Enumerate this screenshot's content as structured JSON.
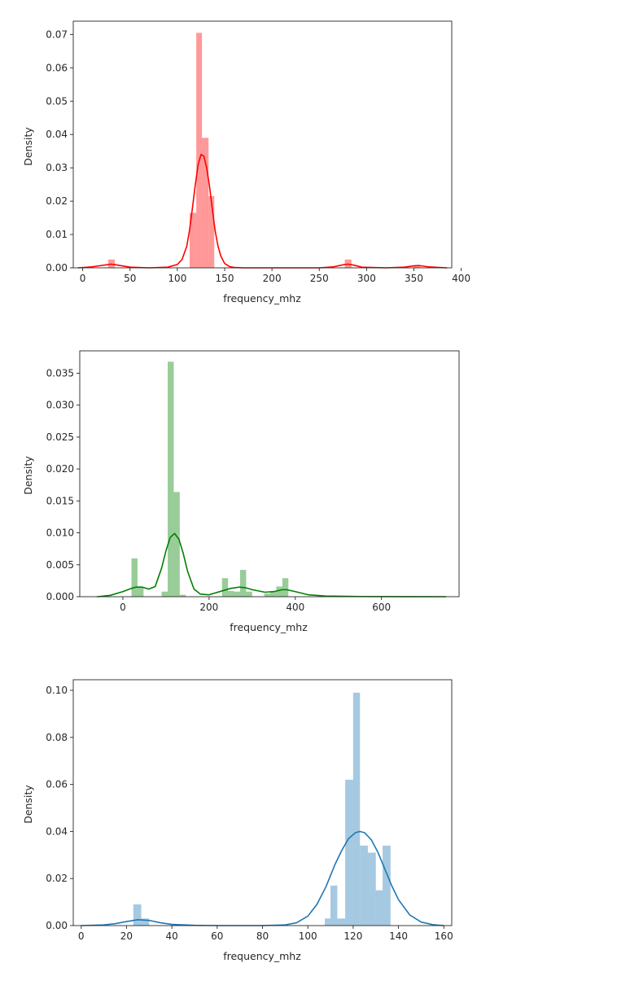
{
  "chart_data": [
    {
      "type": "histogram",
      "xlabel": "frequency_mhz",
      "ylabel": "Density",
      "xlim": [
        -10,
        390
      ],
      "ylim": [
        0,
        0.074
      ],
      "xticks": [
        0,
        50,
        100,
        150,
        200,
        250,
        300,
        350,
        400
      ],
      "yticks": [
        0.0,
        0.01,
        0.02,
        0.03,
        0.04,
        0.05,
        0.06,
        0.07
      ],
      "ytick_labels": [
        "0.00",
        "0.01",
        "0.02",
        "0.03",
        "0.04",
        "0.05",
        "0.06",
        "0.07"
      ],
      "grid": false,
      "color": "#ff0000",
      "bars": [
        {
          "x0": 27,
          "x1": 34,
          "value": 0.0025
        },
        {
          "x0": 113,
          "x1": 120,
          "value": 0.0165
        },
        {
          "x0": 120,
          "x1": 126,
          "value": 0.0705
        },
        {
          "x0": 126,
          "x1": 133,
          "value": 0.039
        },
        {
          "x0": 133,
          "x1": 139,
          "value": 0.0215
        },
        {
          "x0": 277,
          "x1": 284,
          "value": 0.0025
        },
        {
          "x0": 350,
          "x1": 357,
          "value": 0.0008
        }
      ],
      "kde": {
        "x": [
          -5,
          10,
          25,
          30,
          35,
          50,
          70,
          90,
          100,
          105,
          110,
          113,
          116,
          119,
          122,
          125,
          128,
          131,
          134,
          137,
          140,
          143,
          146,
          150,
          155,
          160,
          170,
          200,
          250,
          265,
          275,
          280,
          285,
          295,
          320,
          340,
          350,
          355,
          365,
          385
        ],
        "y": [
          0,
          0.0003,
          0.0009,
          0.0011,
          0.0009,
          0.0002,
          0,
          0.0002,
          0.001,
          0.0025,
          0.0065,
          0.0115,
          0.018,
          0.025,
          0.031,
          0.034,
          0.0335,
          0.03,
          0.0245,
          0.0175,
          0.011,
          0.0065,
          0.0035,
          0.0013,
          0.0004,
          0.0001,
          0,
          0,
          0,
          0.0003,
          0.0009,
          0.0011,
          0.0009,
          0.0002,
          0,
          0.0002,
          0.0006,
          0.0007,
          0.0003,
          0
        ]
      }
    },
    {
      "type": "histogram",
      "xlabel": "frequency_mhz",
      "ylabel": "Density",
      "xlim": [
        -100,
        780
      ],
      "ylim": [
        0,
        0.0385
      ],
      "xticks": [
        0,
        200,
        400,
        600
      ],
      "yticks": [
        0.0,
        0.005,
        0.01,
        0.015,
        0.02,
        0.025,
        0.03,
        0.035
      ],
      "ytick_labels": [
        "0.000",
        "0.005",
        "0.010",
        "0.015",
        "0.020",
        "0.025",
        "0.030",
        "0.035"
      ],
      "grid": false,
      "color": "#008000",
      "bars": [
        {
          "x0": 20,
          "x1": 34,
          "value": 0.006
        },
        {
          "x0": 34,
          "x1": 48,
          "value": 0.0015
        },
        {
          "x0": 90,
          "x1": 104,
          "value": 0.0008
        },
        {
          "x0": 104,
          "x1": 118,
          "value": 0.0368
        },
        {
          "x0": 118,
          "x1": 132,
          "value": 0.0164
        },
        {
          "x0": 132,
          "x1": 146,
          "value": 0.0003
        },
        {
          "x0": 230,
          "x1": 244,
          "value": 0.0029
        },
        {
          "x0": 244,
          "x1": 258,
          "value": 0.0009
        },
        {
          "x0": 258,
          "x1": 272,
          "value": 0.0008
        },
        {
          "x0": 272,
          "x1": 286,
          "value": 0.0042
        },
        {
          "x0": 286,
          "x1": 300,
          "value": 0.0008
        },
        {
          "x0": 328,
          "x1": 342,
          "value": 0.0005
        },
        {
          "x0": 342,
          "x1": 356,
          "value": 0.0008
        },
        {
          "x0": 356,
          "x1": 370,
          "value": 0.0016
        },
        {
          "x0": 370,
          "x1": 384,
          "value": 0.0029
        }
      ],
      "kde": {
        "x": [
          -60,
          -30,
          0,
          20,
          30,
          45,
          60,
          75,
          90,
          100,
          110,
          120,
          130,
          140,
          150,
          165,
          180,
          200,
          230,
          250,
          270,
          285,
          300,
          330,
          350,
          370,
          380,
          400,
          430,
          470,
          550,
          650,
          750
        ],
        "y": [
          0,
          0.0002,
          0.0008,
          0.0013,
          0.0015,
          0.0015,
          0.0012,
          0.0016,
          0.0045,
          0.0072,
          0.0093,
          0.0099,
          0.009,
          0.0068,
          0.004,
          0.0012,
          0.0004,
          0.0003,
          0.0009,
          0.0013,
          0.0015,
          0.0014,
          0.0011,
          0.0007,
          0.0008,
          0.0011,
          0.0011,
          0.0008,
          0.0003,
          0.0001,
          3e-05,
          1e-05,
          0
        ]
      }
    },
    {
      "type": "histogram",
      "xlabel": "frequency_mhz",
      "ylabel": "Density",
      "xlim": [
        -3.5,
        163.5
      ],
      "ylim": [
        0,
        0.1045
      ],
      "xticks": [
        0,
        20,
        40,
        60,
        80,
        100,
        120,
        140,
        160
      ],
      "yticks": [
        0.0,
        0.02,
        0.04,
        0.06,
        0.08,
        0.1
      ],
      "ytick_labels": [
        "0.00",
        "0.02",
        "0.04",
        "0.06",
        "0.08",
        "0.10"
      ],
      "grid": false,
      "color": "#1f77b4",
      "bars": [
        {
          "x0": 23,
          "x1": 26.5,
          "value": 0.009
        },
        {
          "x0": 26.5,
          "x1": 30,
          "value": 0.003
        },
        {
          "x0": 107.5,
          "x1": 110,
          "value": 0.003
        },
        {
          "x0": 110,
          "x1": 113,
          "value": 0.017
        },
        {
          "x0": 113,
          "x1": 116.5,
          "value": 0.003
        },
        {
          "x0": 116.5,
          "x1": 120,
          "value": 0.062
        },
        {
          "x0": 120,
          "x1": 123,
          "value": 0.099
        },
        {
          "x0": 123,
          "x1": 126.5,
          "value": 0.034
        },
        {
          "x0": 126.5,
          "x1": 130,
          "value": 0.031
        },
        {
          "x0": 130,
          "x1": 133,
          "value": 0.015
        },
        {
          "x0": 133,
          "x1": 136.5,
          "value": 0.034
        }
      ],
      "kde": {
        "x": [
          0,
          10,
          15,
          20,
          25,
          30,
          35,
          40,
          50,
          60,
          80,
          90,
          95,
          100,
          104,
          108,
          112,
          115,
          118,
          121,
          123,
          125,
          128,
          131,
          134,
          137,
          140,
          145,
          150,
          155,
          160
        ],
        "y": [
          0,
          0.0003,
          0.0008,
          0.0017,
          0.0025,
          0.0022,
          0.0012,
          0.0005,
          0.0001,
          0,
          0,
          0.0003,
          0.0012,
          0.004,
          0.009,
          0.0165,
          0.026,
          0.032,
          0.037,
          0.0395,
          0.04,
          0.0395,
          0.0365,
          0.031,
          0.024,
          0.017,
          0.011,
          0.0045,
          0.0015,
          0.0004,
          0
        ]
      }
    }
  ]
}
